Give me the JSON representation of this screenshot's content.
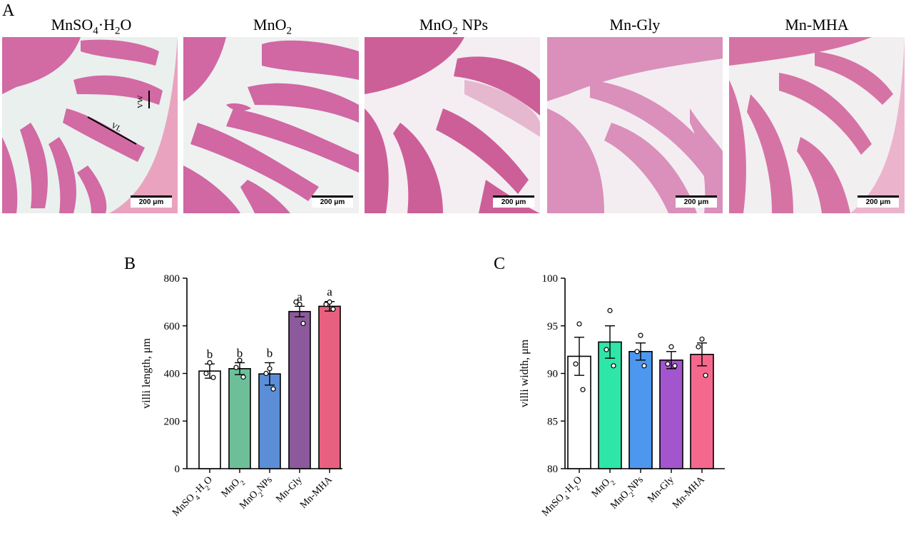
{
  "panels": {
    "a": "A",
    "b": "B",
    "c": "C"
  },
  "micrographs": [
    {
      "title": "MnSO4·H2O",
      "scale": "200 μm",
      "labels": [
        "VL",
        "VW"
      ],
      "tissue_color": "#d05f9e",
      "bg_color": "#eaf0ee"
    },
    {
      "title": "MnO2",
      "scale": "200 μm",
      "labels": [],
      "tissue_color": "#cf5c9d",
      "bg_color": "#eef1f0"
    },
    {
      "title": "MnO2 NPs",
      "scale": "200 μm",
      "labels": [],
      "tissue_color": "#c9508f",
      "bg_color": "#f4eef3"
    },
    {
      "title": "Mn-Gly",
      "scale": "200 μm",
      "labels": [],
      "tissue_color": "#d887b5",
      "bg_color": "#f3edf1"
    },
    {
      "title": "Mn-MHA",
      "scale": "200 μm",
      "labels": [],
      "tissue_color": "#d4699f",
      "bg_color": "#f2eff1"
    }
  ],
  "chart_data": [
    {
      "type": "bar",
      "panel": "B",
      "categories": [
        "MnSO4·H2O",
        "MnO2",
        "MnO2NPs",
        "Mn-Gly",
        "Mn-MHA"
      ],
      "values": [
        410,
        420,
        398,
        660,
        682
      ],
      "errors": [
        30,
        25,
        47,
        22,
        20
      ],
      "points": [
        [
          445,
          400,
          383
        ],
        [
          455,
          425,
          385
        ],
        [
          420,
          400,
          335
        ],
        [
          690,
          700,
          610
        ],
        [
          700,
          690,
          670
        ]
      ],
      "significance": [
        "b",
        "b",
        "b",
        "a",
        "a"
      ],
      "colors": [
        "#ffffff",
        "#6dbf9a",
        "#5b8ed6",
        "#8c5a9c",
        "#e8607f"
      ],
      "xlabel": "",
      "ylabel": "villi length, μm",
      "ylim": [
        0,
        800
      ],
      "yticks": [
        0,
        200,
        400,
        600,
        800
      ]
    },
    {
      "type": "bar",
      "panel": "C",
      "categories": [
        "MnSO4·H2O",
        "MnO2",
        "MnO2NPs",
        "Mn-Gly",
        "Mn-MHA"
      ],
      "values": [
        91.8,
        93.3,
        92.3,
        91.4,
        92.0
      ],
      "errors": [
        2.0,
        1.7,
        0.9,
        0.9,
        1.2
      ],
      "points": [
        [
          95.2,
          91.0,
          88.3
        ],
        [
          96.6,
          92.5,
          90.8
        ],
        [
          94.0,
          92.3,
          90.8
        ],
        [
          92.8,
          91.0,
          90.8
        ],
        [
          93.6,
          92.8,
          89.8
        ]
      ],
      "significance": [],
      "colors": [
        "#ffffff",
        "#2ee6a8",
        "#4d97ee",
        "#a255cd",
        "#f4688e"
      ],
      "xlabel": "",
      "ylabel": "villi width, μm",
      "ylim": [
        80,
        100
      ],
      "yticks": [
        80,
        85,
        90,
        95,
        100
      ]
    }
  ]
}
